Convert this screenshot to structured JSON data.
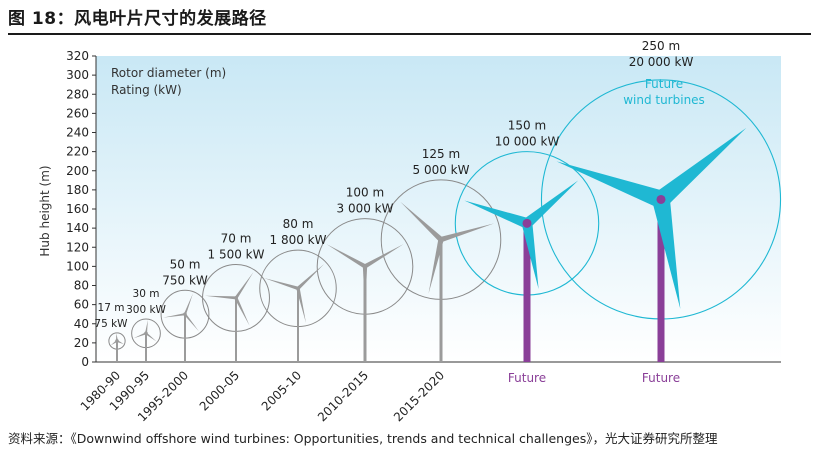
{
  "figure": {
    "title": "图 18：风电叶片尺寸的发展路径",
    "source": "资料来源：《Downwind offshore wind turbines: Opportunities, trends and technical challenges》，光大证券研究所整理"
  },
  "chart_data": {
    "type": "scatter",
    "ylabel": "Hub height (m)",
    "ylim": [
      0,
      320
    ],
    "yticks": [
      0,
      20,
      40,
      60,
      80,
      100,
      120,
      140,
      160,
      180,
      200,
      220,
      240,
      260,
      280,
      300,
      320
    ],
    "legend": {
      "line1": "Rotor diameter (m)",
      "line2": "Rating (kW)",
      "placement": "top-left"
    },
    "background": {
      "top_color": "#c9e8f5",
      "bottom_color": "#ffffff"
    },
    "colors": {
      "current": "#9b9b9b",
      "future_blade": "#1fb8d3",
      "future_tower": "#8a3f98",
      "circle": "#8a8a8a",
      "future_circle": "#1fb8d3"
    },
    "turbines": [
      {
        "period": "1980-90",
        "diameter_label": "17 m",
        "rating_label": "75 kW",
        "rotor_m": 17,
        "hub_m": 22,
        "future": false
      },
      {
        "period": "1990-95",
        "diameter_label": "30 m",
        "rating_label": "300 kW",
        "rotor_m": 30,
        "hub_m": 30,
        "future": false
      },
      {
        "period": "1995-2000",
        "diameter_label": "50 m",
        "rating_label": "750 kW",
        "rotor_m": 50,
        "hub_m": 50,
        "future": false
      },
      {
        "period": "2000-05",
        "diameter_label": "70 m",
        "rating_label": "1 500 kW",
        "rotor_m": 70,
        "hub_m": 67,
        "future": false
      },
      {
        "period": "2005-10",
        "diameter_label": "80 m",
        "rating_label": "1 800 kW",
        "rotor_m": 80,
        "hub_m": 77,
        "future": false
      },
      {
        "period": "2010-2015",
        "diameter_label": "100 m",
        "rating_label": "3 000 kW",
        "rotor_m": 100,
        "hub_m": 100,
        "future": false
      },
      {
        "period": "2015-2020",
        "diameter_label": "125 m",
        "rating_label": "5 000 kW",
        "rotor_m": 125,
        "hub_m": 128,
        "future": false
      },
      {
        "period": "Future",
        "diameter_label": "150 m",
        "rating_label": "10 000 kW",
        "rotor_m": 150,
        "hub_m": 145,
        "future": true
      },
      {
        "period": "Future",
        "diameter_label": "250 m",
        "rating_label": "20 000 kW",
        "rotor_m": 250,
        "hub_m": 170,
        "future": true,
        "note": [
          "Future",
          "wind turbines"
        ]
      }
    ]
  }
}
